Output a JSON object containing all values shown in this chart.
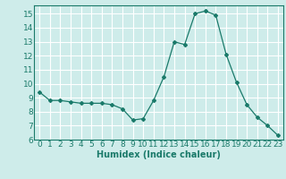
{
  "x": [
    0,
    1,
    2,
    3,
    4,
    5,
    6,
    7,
    8,
    9,
    10,
    11,
    12,
    13,
    14,
    15,
    16,
    17,
    18,
    19,
    20,
    21,
    22,
    23
  ],
  "y": [
    9.4,
    8.8,
    8.8,
    8.7,
    8.6,
    8.6,
    8.6,
    8.5,
    8.2,
    7.4,
    7.5,
    8.8,
    10.5,
    13.0,
    12.8,
    15.0,
    15.2,
    14.9,
    12.1,
    10.1,
    8.5,
    7.6,
    7.0,
    6.3
  ],
  "title": "",
  "xlabel": "Humidex (Indice chaleur)",
  "ylabel": "",
  "xlim": [
    -0.5,
    23.5
  ],
  "ylim": [
    6,
    15.6
  ],
  "yticks": [
    6,
    7,
    8,
    9,
    10,
    11,
    12,
    13,
    14,
    15
  ],
  "xticks": [
    0,
    1,
    2,
    3,
    4,
    5,
    6,
    7,
    8,
    9,
    10,
    11,
    12,
    13,
    14,
    15,
    16,
    17,
    18,
    19,
    20,
    21,
    22,
    23
  ],
  "line_color": "#1a7a6a",
  "marker": "D",
  "marker_size": 2,
  "bg_color": "#ceecea",
  "grid_color": "#ffffff",
  "axes_color": "#1a7a6a",
  "xlabel_fontsize": 7,
  "tick_fontsize": 6.5
}
